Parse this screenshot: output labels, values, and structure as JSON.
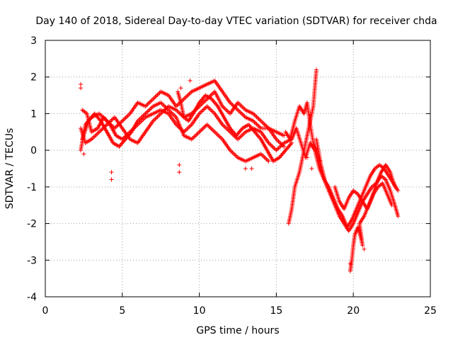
{
  "chart_data": {
    "type": "scatter",
    "title": "Day 140 of 2018, Sidereal Day-to-day VTEC variation (SDTVAR) for receiver chda",
    "xlabel": "GPS time / hours",
    "ylabel": "SDTVAR / TECUs",
    "xlim": [
      0,
      25
    ],
    "ylim": [
      -4,
      3
    ],
    "xticks": [
      0,
      5,
      10,
      15,
      20,
      25
    ],
    "yticks": [
      -4,
      -3,
      -2,
      -1,
      0,
      1,
      2,
      3
    ],
    "grid": true,
    "marker": "+",
    "color": "#ff0000",
    "series": [
      {
        "name": "SDTVAR",
        "tracks": [
          [
            [
              2.3,
              0.0
            ],
            [
              2.6,
              0.7
            ],
            [
              3.0,
              0.9
            ],
            [
              3.5,
              1.0
            ],
            [
              4.0,
              0.8
            ],
            [
              4.5,
              0.6
            ],
            [
              5.0,
              0.8
            ],
            [
              5.5,
              1.0
            ],
            [
              6.0,
              1.3
            ],
            [
              6.5,
              1.2
            ],
            [
              7.0,
              1.4
            ],
            [
              7.5,
              1.6
            ],
            [
              8.0,
              1.5
            ],
            [
              8.5,
              1.2
            ],
            [
              9.0,
              1.4
            ],
            [
              9.5,
              1.6
            ],
            [
              10.0,
              1.7
            ],
            [
              10.5,
              1.8
            ],
            [
              11.0,
              1.9
            ],
            [
              11.5,
              1.6
            ],
            [
              12.0,
              1.3
            ],
            [
              12.5,
              1.1
            ],
            [
              13.0,
              0.9
            ],
            [
              13.5,
              0.8
            ],
            [
              14.0,
              0.6
            ],
            [
              14.5,
              0.6
            ],
            [
              15.0,
              0.3
            ],
            [
              15.5,
              0.1
            ]
          ],
          [
            [
              2.3,
              0.6
            ],
            [
              2.6,
              0.2
            ],
            [
              3.0,
              0.3
            ],
            [
              3.5,
              0.5
            ],
            [
              4.0,
              0.7
            ],
            [
              4.5,
              0.9
            ],
            [
              5.0,
              0.6
            ],
            [
              5.5,
              0.3
            ],
            [
              6.0,
              0.2
            ],
            [
              6.5,
              0.5
            ],
            [
              7.0,
              0.8
            ],
            [
              7.5,
              1.0
            ],
            [
              8.0,
              1.2
            ],
            [
              8.5,
              1.1
            ],
            [
              9.0,
              0.9
            ],
            [
              9.5,
              1.0
            ],
            [
              10.0,
              1.2
            ],
            [
              10.5,
              1.4
            ],
            [
              11.0,
              1.6
            ],
            [
              11.5,
              1.2
            ],
            [
              12.0,
              1.0
            ],
            [
              12.5,
              1.3
            ],
            [
              13.0,
              1.1
            ],
            [
              13.5,
              1.0
            ],
            [
              14.0,
              0.8
            ],
            [
              14.5,
              0.6
            ],
            [
              15.0,
              0.5
            ],
            [
              15.5,
              0.4
            ]
          ],
          [
            [
              2.4,
              1.1
            ],
            [
              2.7,
              1.0
            ],
            [
              3.0,
              0.5
            ],
            [
              3.4,
              0.6
            ],
            [
              3.8,
              0.9
            ],
            [
              4.2,
              0.7
            ],
            [
              4.6,
              0.4
            ],
            [
              5.0,
              0.3
            ],
            [
              5.5,
              0.5
            ],
            [
              6.0,
              0.7
            ],
            [
              6.5,
              0.9
            ],
            [
              7.0,
              1.0
            ],
            [
              7.5,
              1.1
            ],
            [
              8.0,
              1.0
            ],
            [
              8.5,
              0.7
            ],
            [
              9.0,
              0.5
            ],
            [
              9.5,
              0.7
            ],
            [
              10.0,
              1.0
            ],
            [
              10.5,
              1.2
            ],
            [
              11.0,
              1.0
            ],
            [
              11.5,
              0.7
            ],
            [
              12.0,
              0.5
            ],
            [
              12.5,
              0.3
            ],
            [
              13.0,
              0.5
            ],
            [
              13.5,
              0.6
            ],
            [
              14.0,
              0.5
            ],
            [
              14.5,
              0.2
            ],
            [
              15.0,
              0.0
            ],
            [
              15.5,
              0.2
            ],
            [
              16.0,
              0.3
            ]
          ],
          [
            [
              2.4,
              0.3
            ],
            [
              2.8,
              0.8
            ],
            [
              3.2,
              1.0
            ],
            [
              3.6,
              0.8
            ],
            [
              4.0,
              0.5
            ],
            [
              4.4,
              0.2
            ],
            [
              4.8,
              0.1
            ],
            [
              5.2,
              0.3
            ],
            [
              5.6,
              0.5
            ],
            [
              6.0,
              0.8
            ],
            [
              6.5,
              1.0
            ],
            [
              7.0,
              1.2
            ],
            [
              7.5,
              1.3
            ],
            [
              8.0,
              1.1
            ],
            [
              8.5,
              0.9
            ],
            [
              9.0,
              0.4
            ],
            [
              9.5,
              0.3
            ],
            [
              10.0,
              0.5
            ],
            [
              10.5,
              0.7
            ],
            [
              11.0,
              0.5
            ],
            [
              11.5,
              0.3
            ],
            [
              12.0,
              0.0
            ],
            [
              12.5,
              -0.2
            ],
            [
              13.0,
              -0.3
            ],
            [
              13.5,
              -0.2
            ],
            [
              14.0,
              -0.1
            ],
            [
              14.5,
              -0.3
            ]
          ],
          [
            [
              8.6,
              1.6
            ],
            [
              8.8,
              1.3
            ],
            [
              9.0,
              0.9
            ],
            [
              9.3,
              0.8
            ],
            [
              9.6,
              1.0
            ],
            [
              10.0,
              1.3
            ],
            [
              10.4,
              1.5
            ],
            [
              10.8,
              1.4
            ],
            [
              11.2,
              1.2
            ],
            [
              11.6,
              0.9
            ],
            [
              12.0,
              0.6
            ],
            [
              12.4,
              0.4
            ],
            [
              12.8,
              0.6
            ],
            [
              13.2,
              0.7
            ],
            [
              13.6,
              0.5
            ],
            [
              14.0,
              0.3
            ],
            [
              14.4,
              0.0
            ],
            [
              14.8,
              -0.3
            ],
            [
              15.2,
              -0.2
            ],
            [
              15.6,
              0.0
            ],
            [
              16.0,
              0.2
            ]
          ],
          [
            [
              15.8,
              -2.0
            ],
            [
              16.0,
              -1.6
            ],
            [
              16.2,
              -1.0
            ],
            [
              16.5,
              -0.6
            ],
            [
              16.8,
              0.0
            ],
            [
              17.0,
              0.4
            ],
            [
              17.2,
              0.8
            ],
            [
              17.4,
              1.2
            ],
            [
              17.5,
              1.7
            ],
            [
              17.6,
              2.2
            ]
          ],
          [
            [
              15.6,
              0.5
            ],
            [
              15.9,
              0.3
            ],
            [
              16.2,
              0.8
            ],
            [
              16.5,
              1.2
            ],
            [
              16.8,
              1.0
            ],
            [
              17.0,
              1.3
            ],
            [
              17.2,
              0.7
            ],
            [
              17.4,
              0.2
            ],
            [
              17.6,
              0.0
            ],
            [
              17.8,
              -0.3
            ]
          ],
          [
            [
              16.0,
              0.3
            ],
            [
              16.3,
              0.6
            ],
            [
              16.6,
              0.2
            ],
            [
              16.9,
              -0.2
            ],
            [
              17.2,
              0.2
            ],
            [
              17.5,
              0.0
            ],
            [
              17.8,
              -0.5
            ],
            [
              18.1,
              -0.8
            ],
            [
              18.4,
              -1.0
            ],
            [
              18.7,
              -1.3
            ],
            [
              19.0,
              -1.6
            ],
            [
              19.3,
              -1.8
            ],
            [
              19.6,
              -2.1
            ],
            [
              19.9,
              -1.9
            ],
            [
              20.2,
              -1.6
            ],
            [
              20.5,
              -1.3
            ],
            [
              20.8,
              -1.0
            ],
            [
              21.1,
              -0.7
            ],
            [
              21.4,
              -0.5
            ],
            [
              21.7,
              -0.4
            ],
            [
              22.0,
              -0.5
            ],
            [
              22.3,
              -0.7
            ],
            [
              22.6,
              -0.9
            ],
            [
              22.9,
              -1.1
            ]
          ],
          [
            [
              17.6,
              0.3
            ],
            [
              17.9,
              -0.4
            ],
            [
              18.2,
              -0.9
            ],
            [
              18.5,
              -1.2
            ],
            [
              18.8,
              -1.5
            ],
            [
              19.1,
              -1.8
            ],
            [
              19.4,
              -2.0
            ],
            [
              19.7,
              -2.2
            ],
            [
              20.0,
              -2.0
            ],
            [
              20.3,
              -1.7
            ],
            [
              20.6,
              -1.4
            ],
            [
              20.9,
              -1.2
            ],
            [
              21.2,
              -1.0
            ],
            [
              21.5,
              -0.9
            ],
            [
              21.8,
              -0.7
            ],
            [
              22.1,
              -0.8
            ],
            [
              22.4,
              -1.1
            ],
            [
              22.7,
              -1.5
            ],
            [
              22.9,
              -1.8
            ]
          ],
          [
            [
              18.8,
              -1.0
            ],
            [
              19.1,
              -1.4
            ],
            [
              19.4,
              -1.6
            ],
            [
              19.7,
              -1.3
            ],
            [
              20.0,
              -1.1
            ],
            [
              20.3,
              -1.2
            ],
            [
              20.6,
              -1.4
            ],
            [
              20.9,
              -1.6
            ],
            [
              21.2,
              -1.3
            ],
            [
              21.5,
              -0.9
            ],
            [
              21.8,
              -0.6
            ],
            [
              22.1,
              -0.4
            ],
            [
              22.4,
              -0.6
            ],
            [
              22.7,
              -1.0
            ]
          ],
          [
            [
              19.8,
              -3.3
            ],
            [
              19.9,
              -3.0
            ],
            [
              20.0,
              -2.6
            ],
            [
              20.1,
              -2.3
            ],
            [
              20.3,
              -2.1
            ],
            [
              20.5,
              -2.4
            ],
            [
              20.6,
              -2.6
            ],
            [
              20.4,
              -2.0
            ],
            [
              20.7,
              -1.8
            ],
            [
              21.0,
              -1.5
            ],
            [
              21.3,
              -1.2
            ],
            [
              21.6,
              -1.0
            ],
            [
              21.9,
              -0.9
            ],
            [
              22.2,
              -1.2
            ],
            [
              22.5,
              -1.5
            ]
          ]
        ],
        "outliers": [
          [
            2.3,
            1.8
          ],
          [
            2.3,
            1.7
          ],
          [
            2.5,
            -0.1
          ],
          [
            4.3,
            -0.6
          ],
          [
            4.3,
            -0.8
          ],
          [
            8.7,
            -0.4
          ],
          [
            8.7,
            -0.6
          ],
          [
            8.8,
            1.7
          ],
          [
            9.4,
            1.9
          ],
          [
            13.0,
            -0.5
          ],
          [
            13.4,
            -0.5
          ],
          [
            17.0,
            -0.2
          ],
          [
            17.3,
            -0.5
          ],
          [
            19.8,
            -3.1
          ],
          [
            20.7,
            -2.7
          ]
        ]
      }
    ]
  }
}
